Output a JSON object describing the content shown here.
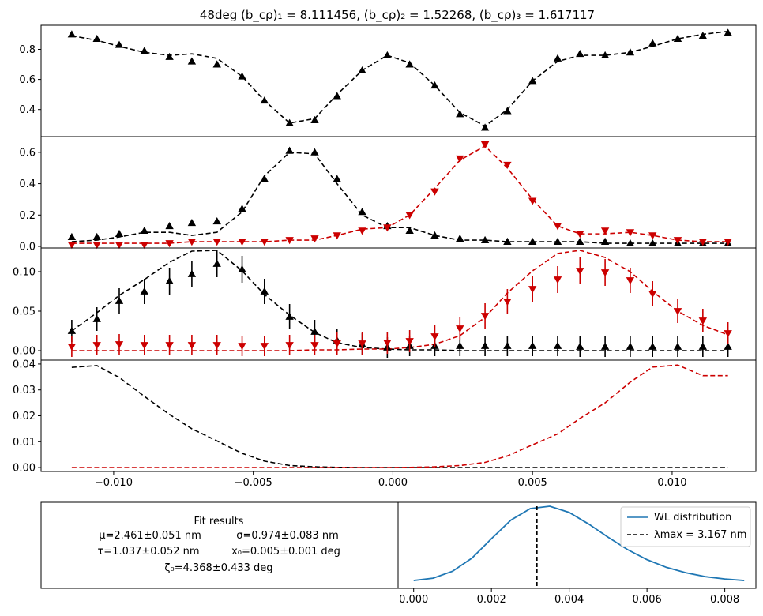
{
  "figure": {
    "title": "48deg   (b_cρ)₁ = 8.111456, (b_cρ)₂ = 1.52268, (b_cρ)₃ = 1.617117",
    "colors": {
      "black": "#000000",
      "red": "#cc0000",
      "blue": "#1f77b4"
    }
  },
  "chart_data": [
    {
      "type": "line",
      "panel": "top",
      "ylim": [
        0.22,
        0.96
      ],
      "yticks": [
        0.4,
        0.6,
        0.8
      ],
      "ytick_labels": [
        "0.4",
        "0.6",
        "0.8"
      ],
      "series": [
        {
          "color": "#000000",
          "marker": "triangle-up",
          "x": [
            -0.0115,
            -0.0106,
            -0.0098,
            -0.0089,
            -0.008,
            -0.0072,
            -0.0063,
            -0.0054,
            -0.0046,
            -0.0037,
            -0.0028,
            -0.002,
            -0.0011,
            -0.0002,
            0.0006,
            0.0015,
            0.0024,
            0.0033,
            0.0041,
            0.005,
            0.0059,
            0.0067,
            0.0076,
            0.0085,
            0.0093,
            0.0102,
            0.0111,
            0.012
          ],
          "points": [
            0.9,
            0.87,
            0.83,
            0.79,
            0.75,
            0.72,
            0.7,
            0.62,
            0.46,
            0.31,
            0.33,
            0.49,
            0.66,
            0.76,
            0.7,
            0.56,
            0.37,
            0.28,
            0.39,
            0.59,
            0.74,
            0.77,
            0.76,
            0.78,
            0.84,
            0.87,
            0.89,
            0.91
          ],
          "fit": [
            0.89,
            0.86,
            0.82,
            0.78,
            0.76,
            0.77,
            0.74,
            0.62,
            0.46,
            0.31,
            0.34,
            0.5,
            0.66,
            0.76,
            0.71,
            0.56,
            0.38,
            0.29,
            0.4,
            0.59,
            0.72,
            0.76,
            0.76,
            0.78,
            0.82,
            0.87,
            0.9,
            0.92
          ]
        }
      ]
    },
    {
      "type": "line",
      "panel": "second",
      "ylim": [
        -0.01,
        0.7
      ],
      "yticks": [
        0.0,
        0.2,
        0.4,
        0.6
      ],
      "ytick_labels": [
        "0.0",
        "0.2",
        "0.4",
        "0.6"
      ],
      "series": [
        {
          "color": "#000000",
          "marker": "triangle-up",
          "x": [
            -0.0115,
            -0.0106,
            -0.0098,
            -0.0089,
            -0.008,
            -0.0072,
            -0.0063,
            -0.0054,
            -0.0046,
            -0.0037,
            -0.0028,
            -0.002,
            -0.0011,
            -0.0002,
            0.0006,
            0.0015,
            0.0024,
            0.0033,
            0.0041,
            0.005,
            0.0059,
            0.0067,
            0.0076,
            0.0085,
            0.0093,
            0.0102,
            0.0111,
            0.012
          ],
          "points": [
            0.06,
            0.06,
            0.08,
            0.1,
            0.13,
            0.15,
            0.16,
            0.24,
            0.43,
            0.61,
            0.6,
            0.43,
            0.22,
            0.13,
            0.1,
            0.07,
            0.05,
            0.04,
            0.03,
            0.03,
            0.03,
            0.03,
            0.03,
            0.02,
            0.02,
            0.02,
            0.02,
            0.02
          ],
          "fit": [
            0.03,
            0.04,
            0.06,
            0.09,
            0.09,
            0.07,
            0.09,
            0.22,
            0.45,
            0.6,
            0.59,
            0.4,
            0.2,
            0.12,
            0.12,
            0.07,
            0.04,
            0.04,
            0.03,
            0.03,
            0.03,
            0.03,
            0.02,
            0.02,
            0.02,
            0.02,
            0.02,
            0.02
          ]
        },
        {
          "color": "#cc0000",
          "marker": "triangle-down",
          "x": [
            -0.0115,
            -0.0106,
            -0.0098,
            -0.0089,
            -0.008,
            -0.0072,
            -0.0063,
            -0.0054,
            -0.0046,
            -0.0037,
            -0.0028,
            -0.002,
            -0.0011,
            -0.0002,
            0.0006,
            0.0015,
            0.0024,
            0.0033,
            0.0041,
            0.005,
            0.0059,
            0.0067,
            0.0076,
            0.0085,
            0.0093,
            0.0102,
            0.0111,
            0.012
          ],
          "points": [
            0.01,
            0.01,
            0.01,
            0.01,
            0.02,
            0.03,
            0.03,
            0.03,
            0.03,
            0.04,
            0.05,
            0.07,
            0.1,
            0.12,
            0.2,
            0.35,
            0.56,
            0.65,
            0.52,
            0.29,
            0.13,
            0.08,
            0.1,
            0.09,
            0.07,
            0.04,
            0.03,
            0.03
          ],
          "fit": [
            0.02,
            0.02,
            0.02,
            0.02,
            0.02,
            0.03,
            0.03,
            0.03,
            0.03,
            0.04,
            0.04,
            0.07,
            0.11,
            0.12,
            0.2,
            0.37,
            0.55,
            0.64,
            0.5,
            0.3,
            0.13,
            0.08,
            0.08,
            0.09,
            0.07,
            0.04,
            0.03,
            0.03
          ]
        }
      ]
    },
    {
      "type": "line",
      "panel": "third",
      "ylim": [
        -0.012,
        0.13
      ],
      "yticks": [
        0.0,
        0.05,
        0.1
      ],
      "ytick_labels": [
        "0.00",
        "0.05",
        "0.10"
      ],
      "series": [
        {
          "color": "#000000",
          "marker": "triangle-up",
          "x": [
            -0.0115,
            -0.0106,
            -0.0098,
            -0.0089,
            -0.008,
            -0.0072,
            -0.0063,
            -0.0054,
            -0.0046,
            -0.0037,
            -0.0028,
            -0.002,
            -0.0011,
            -0.0002,
            0.0006,
            0.0015,
            0.0024,
            0.0033,
            0.0041,
            0.005,
            0.0059,
            0.0067,
            0.0076,
            0.0085,
            0.0093,
            0.0102,
            0.0111,
            0.012
          ],
          "points": [
            0.025,
            0.04,
            0.063,
            0.075,
            0.088,
            0.097,
            0.11,
            0.103,
            0.075,
            0.043,
            0.024,
            0.013,
            0.008,
            0.004,
            0.006,
            0.006,
            0.006,
            0.006,
            0.006,
            0.006,
            0.006,
            0.005,
            0.005,
            0.005,
            0.005,
            0.005,
            0.005,
            0.005
          ],
          "errors": [
            0.014,
            0.015,
            0.016,
            0.016,
            0.017,
            0.017,
            0.017,
            0.017,
            0.016,
            0.016,
            0.015,
            0.014,
            0.014,
            0.013,
            0.013,
            0.013,
            0.013,
            0.013,
            0.013,
            0.013,
            0.013,
            0.013,
            0.013,
            0.013,
            0.013,
            0.013,
            0.013,
            0.013
          ],
          "fit": [
            0.025,
            0.048,
            0.07,
            0.09,
            0.112,
            0.126,
            0.127,
            0.101,
            0.071,
            0.045,
            0.023,
            0.01,
            0.004,
            0.002,
            0.001,
            0.001,
            0.0,
            0.0,
            0.0,
            0.0,
            0.0,
            0.0,
            0.0,
            0.0,
            0.0,
            0.0,
            0.0,
            0.0
          ]
        },
        {
          "color": "#cc0000",
          "marker": "triangle-down",
          "x": [
            -0.0115,
            -0.0106,
            -0.0098,
            -0.0089,
            -0.008,
            -0.0072,
            -0.0063,
            -0.0054,
            -0.0046,
            -0.0037,
            -0.0028,
            -0.002,
            -0.0011,
            -0.0002,
            0.0006,
            0.0015,
            0.0024,
            0.0033,
            0.0041,
            0.005,
            0.0059,
            0.0067,
            0.0076,
            0.0085,
            0.0093,
            0.0102,
            0.0111,
            0.012
          ],
          "points": [
            0.005,
            0.007,
            0.008,
            0.007,
            0.007,
            0.007,
            0.007,
            0.006,
            0.006,
            0.007,
            0.007,
            0.009,
            0.009,
            0.01,
            0.012,
            0.018,
            0.028,
            0.044,
            0.062,
            0.078,
            0.09,
            0.101,
            0.099,
            0.089,
            0.072,
            0.05,
            0.038,
            0.022
          ],
          "errors": [
            0.013,
            0.013,
            0.013,
            0.013,
            0.013,
            0.013,
            0.013,
            0.013,
            0.013,
            0.013,
            0.013,
            0.014,
            0.014,
            0.014,
            0.014,
            0.014,
            0.015,
            0.016,
            0.016,
            0.017,
            0.017,
            0.017,
            0.017,
            0.016,
            0.016,
            0.015,
            0.015,
            0.014
          ],
          "fit": [
            0.0,
            0.0,
            0.0,
            0.0,
            0.0,
            0.0,
            0.0,
            0.0,
            0.0,
            0.0,
            0.001,
            0.001,
            0.002,
            0.002,
            0.004,
            0.008,
            0.019,
            0.042,
            0.073,
            0.101,
            0.123,
            0.127,
            0.118,
            0.1,
            0.075,
            0.05,
            0.032,
            0.02
          ]
        }
      ]
    },
    {
      "type": "line",
      "panel": "fourth",
      "ylim": [
        -0.0015,
        0.0415
      ],
      "yticks": [
        0.0,
        0.01,
        0.02,
        0.03,
        0.04
      ],
      "ytick_labels": [
        "0.00",
        "0.01",
        "0.02",
        "0.03",
        "0.04"
      ],
      "xticks": [
        -0.01,
        -0.005,
        0.0,
        0.005,
        0.01
      ],
      "xtick_labels": [
        "−0.010",
        "−0.005",
        "0.000",
        "0.005",
        "0.010"
      ],
      "series": [
        {
          "color": "#000000",
          "x": [
            -0.0115,
            -0.0106,
            -0.0098,
            -0.0089,
            -0.008,
            -0.0072,
            -0.0063,
            -0.0054,
            -0.0046,
            -0.0037,
            -0.0028,
            -0.002,
            -0.0011,
            -0.0002,
            0.0006,
            0.0015,
            0.0024,
            0.0033,
            0.0041,
            0.005,
            0.0059,
            0.0067,
            0.0076,
            0.0085,
            0.0093,
            0.0102,
            0.0111,
            0.012
          ],
          "fit": [
            0.0387,
            0.0394,
            0.0348,
            0.0275,
            0.0205,
            0.015,
            0.0103,
            0.0055,
            0.0025,
            0.0008,
            0.0003,
            0.0001,
            0.0,
            0.0,
            0.0,
            0.0,
            0.0,
            0.0,
            0.0,
            0.0,
            0.0,
            0.0,
            0.0,
            0.0,
            0.0,
            0.0,
            0.0,
            0.0
          ]
        },
        {
          "color": "#cc0000",
          "x": [
            -0.0115,
            -0.0106,
            -0.0098,
            -0.0089,
            -0.008,
            -0.0072,
            -0.0063,
            -0.0054,
            -0.0046,
            -0.0037,
            -0.0028,
            -0.002,
            -0.0011,
            -0.0002,
            0.0006,
            0.0015,
            0.0024,
            0.0033,
            0.0041,
            0.005,
            0.0059,
            0.0067,
            0.0076,
            0.0085,
            0.0093,
            0.0102,
            0.0111,
            0.012
          ],
          "fit": [
            0.0,
            0.0,
            0.0,
            0.0,
            0.0,
            0.0,
            0.0,
            0.0,
            0.0,
            0.0,
            0.0,
            0.0,
            0.0,
            0.0,
            0.0001,
            0.0003,
            0.0008,
            0.002,
            0.0045,
            0.0088,
            0.013,
            0.019,
            0.025,
            0.033,
            0.0388,
            0.0396,
            0.0355,
            0.0355
          ]
        }
      ]
    },
    {
      "type": "line",
      "panel": "wl-distribution",
      "xlim": [
        -0.0004,
        0.0088
      ],
      "ylim": [
        0.0,
        1.0
      ],
      "xticks": [
        0.0,
        0.002,
        0.004,
        0.006,
        0.008
      ],
      "xtick_labels": [
        "0.000",
        "0.002",
        "0.004",
        "0.006",
        "0.008"
      ],
      "legend": "top-right",
      "series": [
        {
          "name": "WL distribution",
          "color": "#1f77b4",
          "x": [
            0.0,
            0.0005,
            0.001,
            0.0015,
            0.002,
            0.0025,
            0.003,
            0.0035,
            0.004,
            0.0045,
            0.005,
            0.0055,
            0.006,
            0.0065,
            0.007,
            0.0075,
            0.008,
            0.0085
          ],
          "values": [
            0.04,
            0.07,
            0.16,
            0.33,
            0.58,
            0.82,
            0.97,
            1.0,
            0.92,
            0.77,
            0.6,
            0.44,
            0.31,
            0.21,
            0.14,
            0.09,
            0.06,
            0.04
          ]
        },
        {
          "name": "λmax = 3.167 nm",
          "color": "#000000",
          "dashed": true,
          "vline": 0.003167
        }
      ]
    }
  ],
  "fit_results": {
    "heading": "Fit results",
    "line1_a": "μ=2.461±0.051 nm",
    "line1_b": "σ=0.974±0.083 nm",
    "line2_a": "τ=1.037±0.052 nm",
    "line2_b": "x₀=0.005±0.001 deg",
    "line3": "ζ₀=4.368±0.433  deg"
  }
}
